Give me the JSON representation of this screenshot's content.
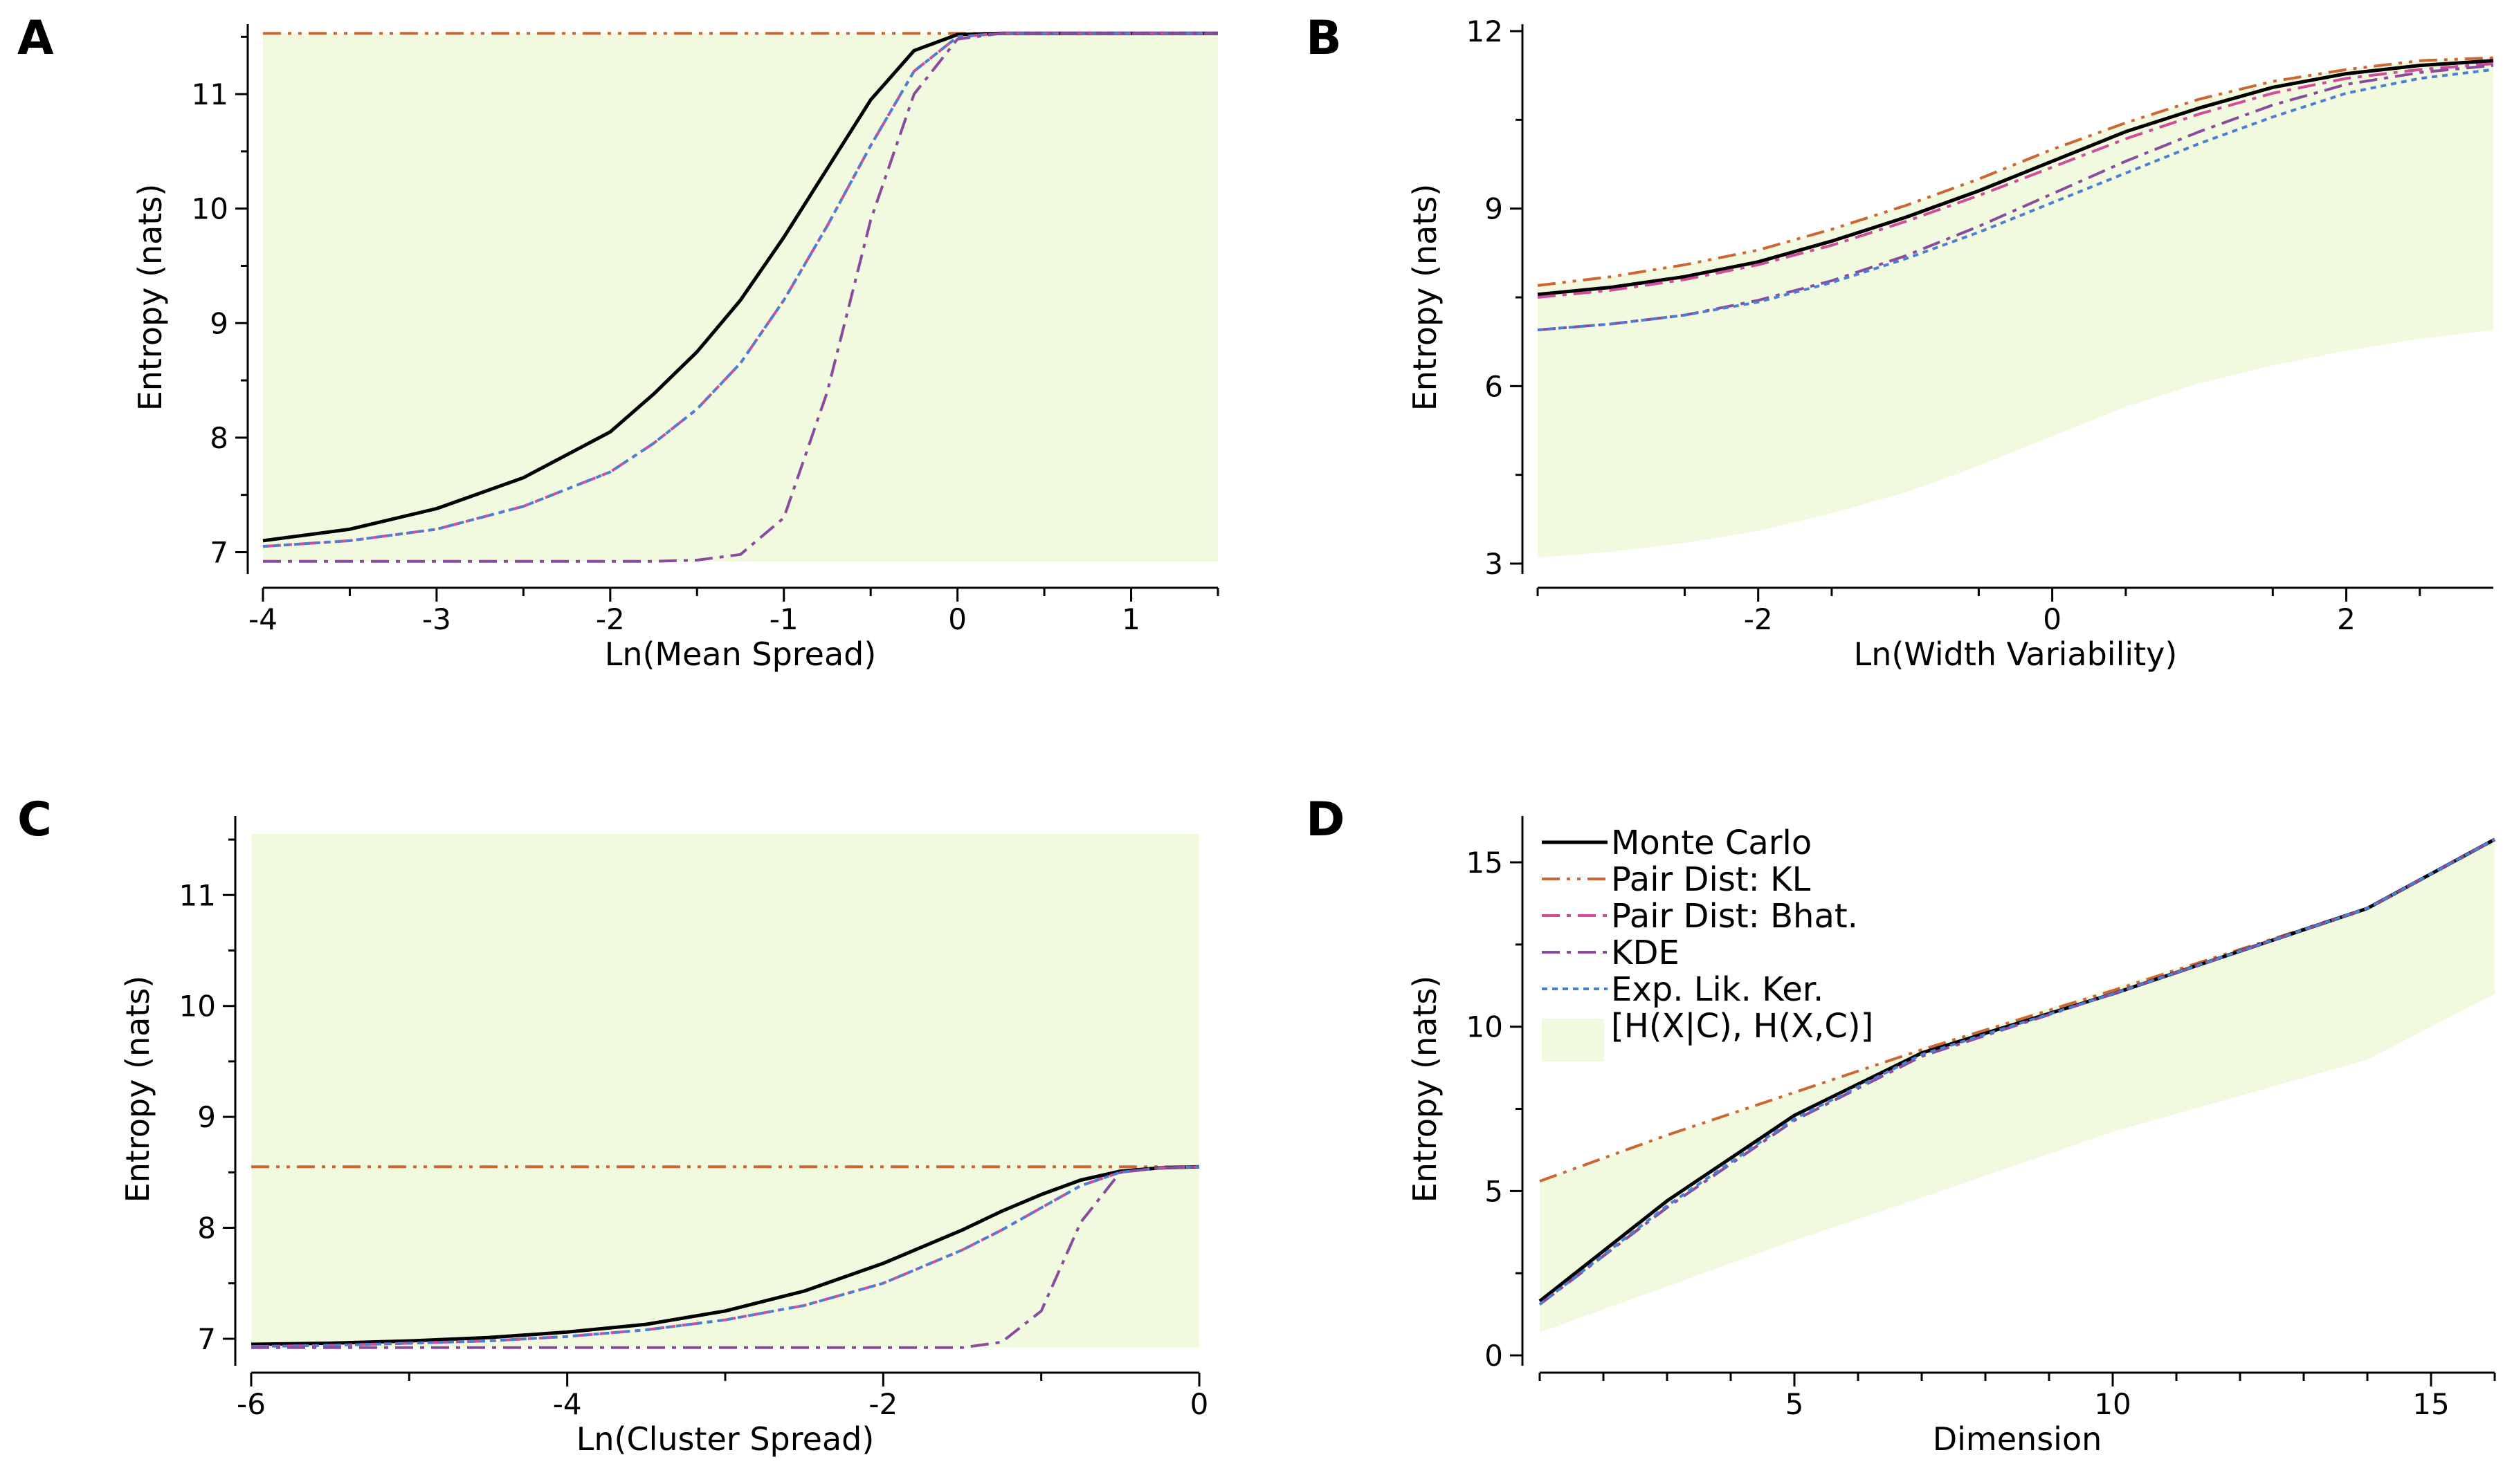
{
  "figure": {
    "panels": [
      "A",
      "B",
      "C",
      "D"
    ],
    "colors": {
      "band": "#f1f9df",
      "monte_carlo": "#000000",
      "kl": "#cc6633",
      "bhat": "#d14d9c",
      "kde": "#8a4b9f",
      "elk": "#4a7fd6"
    }
  },
  "legend": {
    "entries": [
      {
        "key": "mc",
        "label": "Monte Carlo",
        "style": "solid",
        "color": "#000000"
      },
      {
        "key": "kl",
        "label": "Pair Dist: KL",
        "style": "dashdotdot",
        "color": "#cc6633"
      },
      {
        "key": "bhat",
        "label": "Pair Dist: Bhat.",
        "style": "dashdot",
        "color": "#d14d9c"
      },
      {
        "key": "kde",
        "label": "KDE",
        "style": "dashdot",
        "color": "#8a4b9f"
      },
      {
        "key": "elk",
        "label": "Exp. Lik. Ker.",
        "style": "dotted",
        "color": "#4a7fd6"
      },
      {
        "key": "band",
        "label": "[H(X|C), H(X,C)]",
        "style": "fill",
        "color": "#f1f9df"
      }
    ]
  },
  "chart_data": [
    {
      "id": "A",
      "type": "line",
      "title": "A",
      "xlabel": "Ln(Mean Spread)",
      "ylabel": "Entropy (nats)",
      "xlim": [
        -4,
        1.5
      ],
      "ylim": [
        6.9,
        11.55
      ],
      "xticks": [
        -4,
        -3,
        -2,
        -1,
        0,
        1
      ],
      "yticks": [
        7,
        8,
        9,
        10,
        11
      ],
      "x": [
        -4,
        -3.5,
        -3,
        -2.5,
        -2,
        -1.75,
        -1.5,
        -1.25,
        -1,
        -0.75,
        -0.5,
        -0.25,
        0,
        0.25,
        0.5,
        1,
        1.5
      ],
      "band": {
        "lower": [
          6.92,
          6.92,
          6.92,
          6.92,
          6.92,
          6.92,
          6.92,
          6.92,
          6.92,
          6.92,
          6.92,
          6.92,
          6.92,
          6.92,
          6.92,
          6.92,
          6.92
        ],
        "upper": [
          11.53,
          11.53,
          11.53,
          11.53,
          11.53,
          11.53,
          11.53,
          11.53,
          11.53,
          11.53,
          11.53,
          11.53,
          11.53,
          11.53,
          11.53,
          11.53,
          11.53
        ]
      },
      "series": [
        {
          "key": "kl",
          "name": "Pair Dist: KL",
          "values": [
            11.53,
            11.53,
            11.53,
            11.53,
            11.53,
            11.53,
            11.53,
            11.53,
            11.53,
            11.53,
            11.53,
            11.53,
            11.53,
            11.53,
            11.53,
            11.53,
            11.53
          ]
        },
        {
          "key": "mc",
          "name": "Monte Carlo",
          "values": [
            7.1,
            7.2,
            7.38,
            7.65,
            8.05,
            8.38,
            8.75,
            9.2,
            9.75,
            10.35,
            10.95,
            11.38,
            11.52,
            11.53,
            11.53,
            11.53,
            11.53
          ]
        },
        {
          "key": "bhat",
          "name": "Pair Dist: Bhat.",
          "values": [
            7.05,
            7.1,
            7.2,
            7.4,
            7.7,
            7.95,
            8.25,
            8.65,
            9.2,
            9.85,
            10.55,
            11.2,
            11.5,
            11.53,
            11.53,
            11.53,
            11.53
          ]
        },
        {
          "key": "elk",
          "name": "Exp. Lik. Ker.",
          "values": [
            7.05,
            7.1,
            7.2,
            7.4,
            7.7,
            7.95,
            8.25,
            8.65,
            9.2,
            9.85,
            10.55,
            11.2,
            11.5,
            11.53,
            11.53,
            11.53,
            11.53
          ]
        },
        {
          "key": "kde",
          "name": "KDE",
          "values": [
            6.92,
            6.92,
            6.92,
            6.92,
            6.92,
            6.92,
            6.93,
            6.98,
            7.3,
            8.4,
            9.9,
            11.0,
            11.48,
            11.53,
            11.53,
            11.53,
            11.53
          ]
        }
      ]
    },
    {
      "id": "B",
      "type": "line",
      "title": "B",
      "xlabel": "Ln(Width Variability)",
      "ylabel": "Entropy (nats)",
      "xlim": [
        -3.5,
        3
      ],
      "ylim": [
        3,
        12
      ],
      "xticks": [
        -2,
        0,
        2
      ],
      "yticks": [
        3,
        6,
        9,
        12
      ],
      "x": [
        -3.5,
        -3,
        -2.5,
        -2,
        -1.5,
        -1,
        -0.5,
        0,
        0.5,
        1,
        1.5,
        2,
        2.5,
        3
      ],
      "band": {
        "lower": [
          3.1,
          3.2,
          3.35,
          3.55,
          3.85,
          4.2,
          4.65,
          5.15,
          5.65,
          6.05,
          6.35,
          6.6,
          6.8,
          6.95
        ],
        "upper": [
          7.7,
          7.85,
          8.05,
          8.3,
          8.65,
          9.05,
          9.5,
          10.0,
          10.45,
          10.85,
          11.15,
          11.35,
          11.5,
          11.55
        ]
      },
      "series": [
        {
          "key": "kl",
          "name": "Pair Dist: KL",
          "values": [
            7.7,
            7.85,
            8.05,
            8.3,
            8.65,
            9.05,
            9.5,
            10.0,
            10.45,
            10.85,
            11.15,
            11.35,
            11.5,
            11.55
          ]
        },
        {
          "key": "mc",
          "name": "Monte Carlo",
          "values": [
            7.55,
            7.67,
            7.85,
            8.1,
            8.45,
            8.85,
            9.3,
            9.8,
            10.3,
            10.7,
            11.05,
            11.28,
            11.42,
            11.5
          ]
        },
        {
          "key": "bhat",
          "name": "Pair Dist: Bhat.",
          "values": [
            7.5,
            7.62,
            7.8,
            8.05,
            8.38,
            8.78,
            9.22,
            9.7,
            10.18,
            10.6,
            10.95,
            11.2,
            11.35,
            11.45
          ]
        },
        {
          "key": "kde",
          "name": "KDE",
          "values": [
            6.95,
            7.05,
            7.2,
            7.45,
            7.78,
            8.2,
            8.7,
            9.25,
            9.8,
            10.3,
            10.75,
            11.1,
            11.3,
            11.42
          ]
        },
        {
          "key": "elk",
          "name": "Exp. Lik. Ker.",
          "values": [
            6.95,
            7.05,
            7.2,
            7.42,
            7.75,
            8.15,
            8.6,
            9.1,
            9.6,
            10.1,
            10.55,
            10.95,
            11.2,
            11.35
          ]
        }
      ]
    },
    {
      "id": "C",
      "type": "line",
      "title": "C",
      "xlabel": "Ln(Cluster Spread)",
      "ylabel": "Entropy (nats)",
      "xlim": [
        -6,
        0
      ],
      "ylim": [
        6.85,
        11.65
      ],
      "xticks": [
        -6,
        -4,
        -2,
        0
      ],
      "yticks": [
        7,
        8,
        9,
        10,
        11
      ],
      "x": [
        -6,
        -5.5,
        -5,
        -4.5,
        -4,
        -3.5,
        -3,
        -2.5,
        -2,
        -1.5,
        -1.25,
        -1,
        -0.75,
        -0.5,
        -0.25,
        0
      ],
      "band": {
        "lower": [
          6.92,
          6.92,
          6.92,
          6.92,
          6.92,
          6.92,
          6.92,
          6.92,
          6.92,
          6.92,
          6.92,
          6.92,
          6.92,
          6.92,
          6.92,
          6.92
        ],
        "upper": [
          11.55,
          11.55,
          11.55,
          11.55,
          11.55,
          11.55,
          11.55,
          11.55,
          11.55,
          11.55,
          11.55,
          11.55,
          11.55,
          11.55,
          11.55,
          11.55
        ]
      },
      "series": [
        {
          "key": "kl",
          "name": "Pair Dist: KL",
          "values": [
            8.55,
            8.55,
            8.55,
            8.55,
            8.55,
            8.55,
            8.55,
            8.55,
            8.55,
            8.55,
            8.55,
            8.55,
            8.55,
            8.55,
            8.55,
            8.55
          ]
        },
        {
          "key": "mc",
          "name": "Monte Carlo",
          "values": [
            6.95,
            6.96,
            6.98,
            7.01,
            7.06,
            7.13,
            7.25,
            7.43,
            7.68,
            7.98,
            8.15,
            8.3,
            8.43,
            8.51,
            8.54,
            8.55
          ]
        },
        {
          "key": "bhat",
          "name": "Pair Dist: Bhat.",
          "values": [
            6.93,
            6.94,
            6.96,
            6.98,
            7.02,
            7.08,
            7.17,
            7.3,
            7.5,
            7.8,
            7.98,
            8.18,
            8.38,
            8.5,
            8.54,
            8.55
          ]
        },
        {
          "key": "elk",
          "name": "Exp. Lik. Ker.",
          "values": [
            6.93,
            6.94,
            6.96,
            6.98,
            7.02,
            7.08,
            7.17,
            7.3,
            7.5,
            7.8,
            7.98,
            8.18,
            8.38,
            8.5,
            8.54,
            8.55
          ]
        },
        {
          "key": "kde",
          "name": "KDE",
          "values": [
            6.92,
            6.92,
            6.92,
            6.92,
            6.92,
            6.92,
            6.92,
            6.92,
            6.92,
            6.92,
            6.97,
            7.25,
            8.05,
            8.5,
            8.54,
            8.55
          ]
        }
      ]
    },
    {
      "id": "D",
      "type": "line",
      "title": "D",
      "xlabel": "Dimension",
      "ylabel": "Entropy (nats)",
      "xlim": [
        1,
        16
      ],
      "ylim": [
        0,
        16.2
      ],
      "xticks": [
        5,
        10,
        15
      ],
      "yticks": [
        0,
        5,
        10,
        15
      ],
      "x": [
        1,
        3,
        5,
        7,
        10,
        14,
        16
      ],
      "band": {
        "lower": [
          0.7,
          2.1,
          3.5,
          4.8,
          6.8,
          9.0,
          11.0
        ],
        "upper": [
          5.3,
          6.7,
          8.0,
          9.3,
          11.2,
          13.6,
          15.7
        ]
      },
      "series": [
        {
          "key": "kl",
          "name": "Pair Dist: KL",
          "values": [
            5.3,
            6.7,
            8.0,
            9.3,
            11.1,
            13.6,
            15.7
          ]
        },
        {
          "key": "mc",
          "name": "Monte Carlo",
          "values": [
            1.65,
            4.7,
            7.3,
            9.2,
            11.0,
            13.6,
            15.7
          ]
        },
        {
          "key": "bhat",
          "name": "Pair Dist: Bhat.",
          "values": [
            1.55,
            4.5,
            7.15,
            9.1,
            11.0,
            13.6,
            15.7
          ]
        },
        {
          "key": "kde",
          "name": "KDE",
          "values": [
            1.55,
            4.5,
            7.15,
            9.1,
            11.0,
            13.6,
            15.7
          ]
        },
        {
          "key": "elk",
          "name": "Exp. Lik. Ker.",
          "values": [
            1.55,
            4.55,
            7.2,
            9.15,
            11.0,
            13.6,
            15.7
          ]
        }
      ]
    }
  ]
}
